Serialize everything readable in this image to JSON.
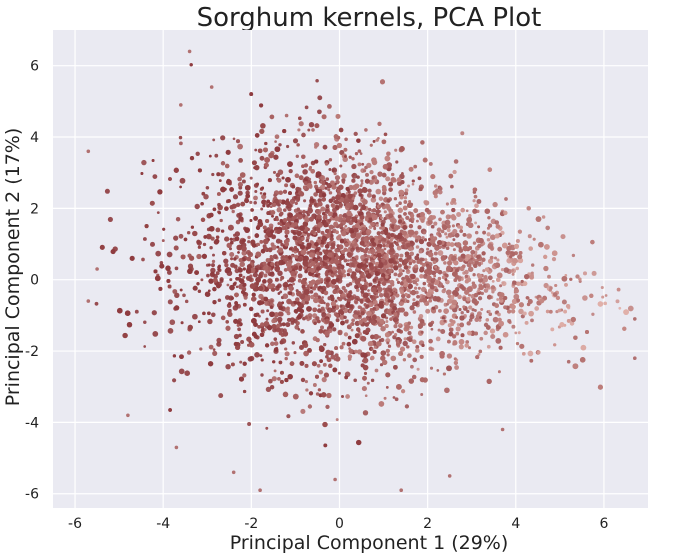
{
  "chart_data": {
    "type": "scatter",
    "title": "Sorghum kernels, PCA Plot",
    "xlabel": "Principal Component 1 (29%)",
    "ylabel": "Principal Component 2 (17%)",
    "xlim": [
      -6.5,
      7
    ],
    "ylim": [
      -6.4,
      7
    ],
    "x_ticks": [
      -6,
      -4,
      -2,
      0,
      2,
      4,
      6
    ],
    "y_ticks": [
      -6,
      -4,
      -2,
      0,
      2,
      4,
      6
    ],
    "grid": true,
    "legend": "none",
    "colors": {
      "background": "#EAEAF2",
      "grid": "#FFFFFF",
      "point_dark": "#8E3B3E",
      "point_light": "#E0AFA8"
    },
    "point_count_approx": 5000,
    "cloud_summary": {
      "center": [
        0.3,
        0.5
      ],
      "x_range": [
        -5.7,
        6.7
      ],
      "y_range": [
        -6.0,
        6.4
      ]
    },
    "outliers": [
      [
        -3.4,
        6.4
      ],
      [
        -2.9,
        5.4
      ],
      [
        -3.6,
        4.9
      ],
      [
        -5.7,
        3.6
      ],
      [
        -5.5,
        0.3
      ],
      [
        -5.7,
        -0.6
      ],
      [
        -4.8,
        -3.8
      ],
      [
        -3.7,
        -4.7
      ],
      [
        -2.4,
        -5.4
      ],
      [
        -1.8,
        -5.9
      ],
      [
        6.7,
        -1.1
      ],
      [
        6.7,
        -2.2
      ],
      [
        3.7,
        -4.2
      ],
      [
        -0.1,
        -5.6
      ],
      [
        2.5,
        -5.5
      ],
      [
        0.6,
        4.2
      ],
      [
        -0.6,
        4.2
      ],
      [
        -1.2,
        4.6
      ],
      [
        1.4,
        -5.9
      ],
      [
        5.2,
        -2.3
      ]
    ]
  }
}
